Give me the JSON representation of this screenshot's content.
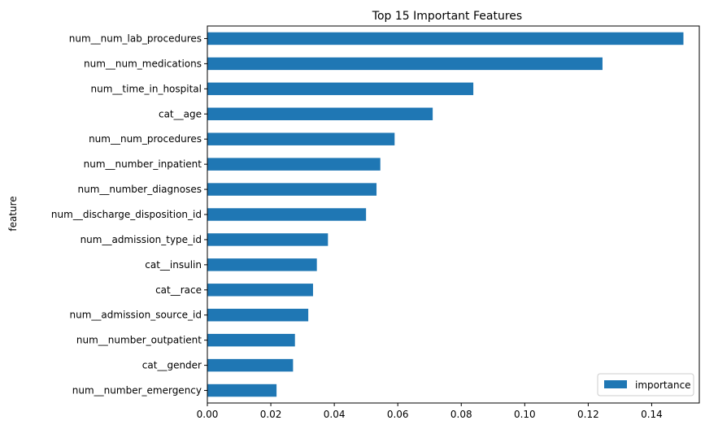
{
  "chart_data": {
    "type": "bar",
    "orientation": "horizontal",
    "title": "Top 15 Important Features",
    "xlabel": "",
    "ylabel": "feature",
    "xlim": [
      0.0,
      0.155
    ],
    "xticks": [
      "0.00",
      "0.02",
      "0.04",
      "0.06",
      "0.08",
      "0.10",
      "0.12",
      "0.14"
    ],
    "grid": false,
    "legend_position": "bottom-right",
    "bar_color": "#1f77b4",
    "categories": [
      "num__num_lab_procedures",
      "num__num_medications",
      "num__time_in_hospital",
      "cat__age",
      "num__num_procedures",
      "num__number_inpatient",
      "num__number_diagnoses",
      "num__discharge_disposition_id",
      "num__admission_type_id",
      "cat__insulin",
      "cat__race",
      "num__admission_source_id",
      "num__number_outpatient",
      "cat__gender",
      "num__number_emergency"
    ],
    "series": [
      {
        "name": "importance",
        "values": [
          0.15,
          0.1245,
          0.0838,
          0.071,
          0.059,
          0.0545,
          0.0533,
          0.05,
          0.038,
          0.0345,
          0.0333,
          0.0318,
          0.0276,
          0.027,
          0.0218
        ]
      }
    ]
  }
}
